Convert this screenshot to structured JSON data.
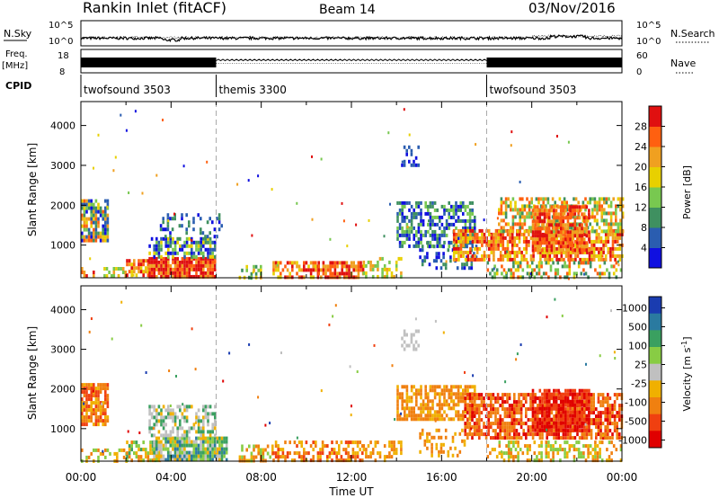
{
  "header": {
    "station": "Rankin Inlet (fitACF)",
    "beam": "Beam 14",
    "date": "03/Nov/2016"
  },
  "param_panel": {
    "nsky_label": "N.Sky",
    "nsky_ticks": [
      "10^5",
      "10^0"
    ],
    "nsearch_label": "N.Search",
    "nsearch_ticks": [
      "10^5",
      "10^0"
    ],
    "freq_label_1": "Freq.",
    "freq_label_2": "[MHz]",
    "freq_ticks": [
      "18",
      "8"
    ],
    "nave_label": "Nave",
    "nave_ticks": [
      "60",
      "0"
    ],
    "cpid_label": "CPID",
    "cpid_segments": [
      {
        "name": "twofsound 3503",
        "start_hour": 0,
        "end_hour": 6
      },
      {
        "name": "themis 3300",
        "start_hour": 6,
        "end_hour": 18
      },
      {
        "name": "twofsound 3503",
        "start_hour": 18,
        "end_hour": 24
      }
    ]
  },
  "chart_data": [
    {
      "type": "heatmap",
      "quantity": "power",
      "ylabel": "Slant Range [km]",
      "ylim": [
        180,
        4600
      ],
      "yticks": [
        "1000",
        "2000",
        "3000",
        "4000"
      ],
      "colorbar_label": "Power [dB]",
      "colorbar_ticks": [
        "4",
        "8",
        "12",
        "16",
        "20",
        "24",
        "28"
      ],
      "colors": [
        "#1010e0",
        "#2a5db0",
        "#3f9060",
        "#78c850",
        "#e8d000",
        "#f0a020",
        "#ff6010",
        "#e01010"
      ]
    },
    {
      "type": "heatmap",
      "quantity": "velocity",
      "ylabel": "Slant Range [km]",
      "ylim": [
        180,
        4600
      ],
      "yticks": [
        "1000",
        "2000",
        "3000",
        "4000"
      ],
      "xlabel": "Time UT",
      "xticks": [
        "00:00",
        "04:00",
        "08:00",
        "12:00",
        "16:00",
        "20:00",
        "00:00"
      ],
      "colorbar_label_main": "Velocity [m s",
      "colorbar_label_sup": "-1",
      "colorbar_label_end": "]",
      "colorbar_ticks": [
        "1000",
        "500",
        "100",
        "25",
        "-25",
        "-100",
        "-500",
        "-1000"
      ],
      "colors": [
        "#1a3cb0",
        "#2a7aa0",
        "#3aa060",
        "#88cc44",
        "#c0c0c0",
        "#f0b000",
        "#f08010",
        "#f04010",
        "#e00000"
      ]
    }
  ]
}
